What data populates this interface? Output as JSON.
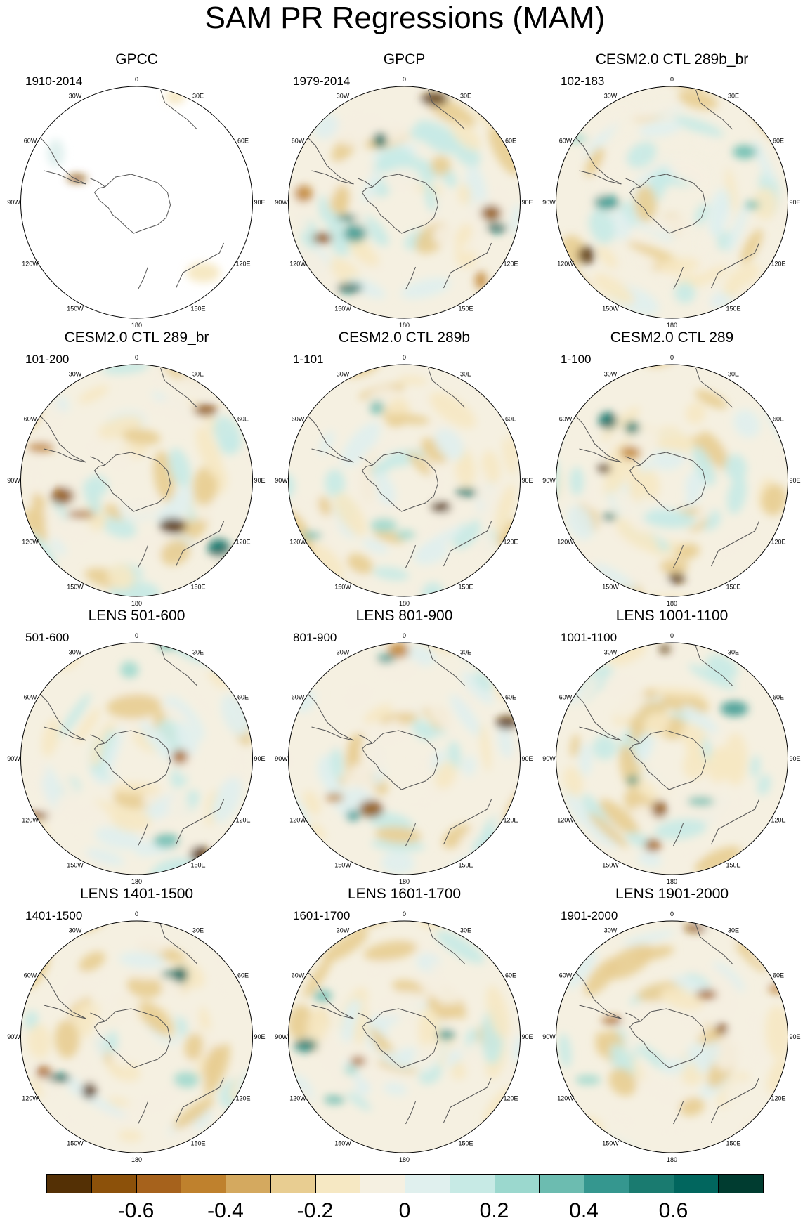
{
  "title": "SAM PR Regressions (MAM)",
  "lon_labels": [
    "0",
    "30E",
    "60E",
    "90E",
    "120E",
    "150E",
    "180",
    "150W",
    "120W",
    "90W",
    "60W",
    "30W"
  ],
  "panels": [
    {
      "title": "GPCC",
      "years": "1910-2014",
      "field": "obs-sparse"
    },
    {
      "title": "GPCP",
      "years": "1979-2014",
      "field": "obs"
    },
    {
      "title": "CESM2.0 CTL 289b_br",
      "years": "102-183",
      "field": "model"
    },
    {
      "title": "CESM2.0 CTL 289_br",
      "years": "101-200",
      "field": "model"
    },
    {
      "title": "CESM2.0 CTL 289b",
      "years": "1-101",
      "field": "model"
    },
    {
      "title": "CESM2.0 CTL 289",
      "years": "1-100",
      "field": "model"
    },
    {
      "title": "LENS 501-600",
      "years": "501-600",
      "field": "model"
    },
    {
      "title": "LENS 801-900",
      "years": "801-900",
      "field": "model"
    },
    {
      "title": "LENS 1001-1100",
      "years": "1001-1100",
      "field": "model"
    },
    {
      "title": "LENS 1401-1500",
      "years": "1401-1500",
      "field": "model"
    },
    {
      "title": "LENS 1601-1700",
      "years": "1601-1700",
      "field": "model"
    },
    {
      "title": "LENS 1901-2000",
      "years": "1901-2000",
      "field": "model"
    }
  ],
  "colorbar": {
    "colors": [
      "#543005",
      "#8c510a",
      "#a6621c",
      "#bf812d",
      "#d4a95f",
      "#e8cd91",
      "#f6e8c3",
      "#f5f0e1",
      "#e0f0ee",
      "#c7eae5",
      "#9bd8ce",
      "#6cbcb0",
      "#35978f",
      "#1a7b70",
      "#01665e",
      "#003c30"
    ],
    "labels": [
      "-0.6",
      "-0.4",
      "-0.2",
      "0",
      "0.2",
      "0.4",
      "0.6"
    ],
    "label_values": [
      -0.6,
      -0.4,
      -0.2,
      0,
      0.2,
      0.4,
      0.6
    ],
    "range": [
      -0.8,
      0.8
    ]
  }
}
